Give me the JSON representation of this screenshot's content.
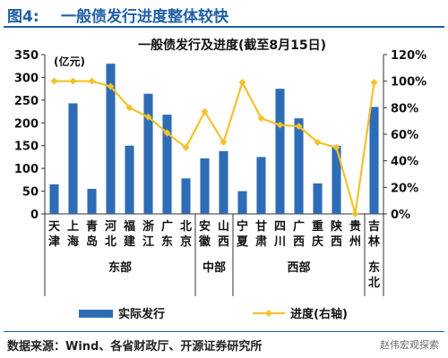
{
  "figure": {
    "label": "图4:",
    "title": "一般债发行进度整体较快",
    "source": "数据来源：Wind、各省财政厅、开源证券研究所",
    "watermark": "赵伟宏观探索"
  },
  "chart_data": {
    "type": "bar+line",
    "title": "一般债发行及进度(截至8月15日)",
    "ylabel_left_unit": "(亿元)",
    "ylim_left": [
      0,
      350
    ],
    "yticks_left": [
      0,
      50,
      100,
      150,
      200,
      250,
      300,
      350
    ],
    "ylim_right": [
      0,
      120
    ],
    "yticks_right": [
      "0%",
      "20%",
      "40%",
      "60%",
      "80%",
      "100%",
      "120%"
    ],
    "categories": [
      [
        "天",
        "津"
      ],
      [
        "上",
        "海"
      ],
      [
        "青",
        "岛"
      ],
      [
        "河",
        "北"
      ],
      [
        "福",
        "建"
      ],
      [
        "浙",
        "江"
      ],
      [
        "广",
        "东"
      ],
      [
        "北",
        "京"
      ],
      [
        "安",
        "徽"
      ],
      [
        "山",
        "西"
      ],
      [
        "宁",
        "夏"
      ],
      [
        "甘",
        "肃"
      ],
      [
        "四",
        "川"
      ],
      [
        "广",
        "西"
      ],
      [
        "重",
        "庆"
      ],
      [
        "陕",
        "西"
      ],
      [
        "贵",
        "州"
      ],
      [
        "吉",
        "林"
      ]
    ],
    "groups": [
      {
        "name": "东部",
        "start": 0,
        "end": 7
      },
      {
        "name": "中部",
        "start": 8,
        "end": 9
      },
      {
        "name": "西部",
        "start": 10,
        "end": 16
      },
      {
        "name": "东北",
        "start": 17,
        "end": 17
      }
    ],
    "series": [
      {
        "name": "实际发行",
        "type": "bar",
        "axis": "left",
        "color": "#2e6db5",
        "values": [
          65,
          243,
          55,
          330,
          150,
          264,
          218,
          78,
          122,
          138,
          50,
          125,
          275,
          210,
          67,
          150,
          null,
          235
        ]
      },
      {
        "name": "进度(右轴)",
        "type": "line",
        "axis": "right",
        "color": "#f3c12b",
        "values": [
          100,
          100,
          100,
          96,
          80,
          73,
          61,
          50,
          77,
          54,
          99,
          72,
          67,
          66,
          54,
          50,
          0,
          99
        ]
      }
    ],
    "legend": "bottom"
  }
}
